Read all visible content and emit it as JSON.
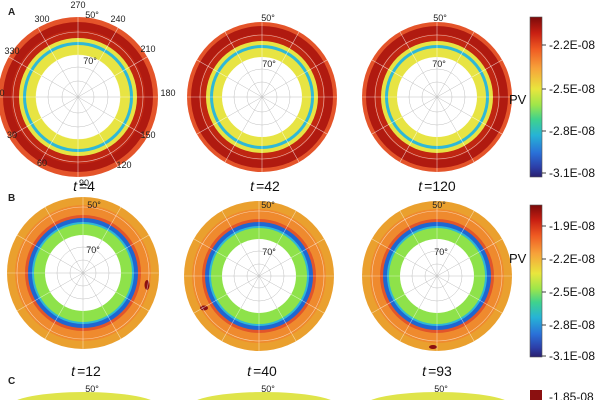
{
  "panels": [
    {
      "label": "A",
      "time_labels": [
        "4",
        "42",
        "120"
      ],
      "longitude_ticks": [
        "270",
        "240",
        "210",
        "180",
        "150",
        "120",
        "90",
        "60",
        "30",
        "0",
        "330",
        "300"
      ],
      "latitude_ticks": [
        "50°",
        "70°"
      ],
      "colorbar": {
        "label": "PV",
        "ticks": [
          "-2.2E-08",
          "-2.5E-08",
          "-2.8E-08",
          "-3.1E-08"
        ],
        "values": [
          -2.2e-08,
          -2.5e-08,
          -2.8e-08,
          -3.1e-08
        ],
        "range": [
          -3.1e-08,
          -2e-08
        ]
      },
      "rings": {
        "outer": "#b01a10",
        "middle": "#e7e443",
        "jet": "#2fb8d6",
        "edge": "#e4542a"
      }
    },
    {
      "label": "B",
      "time_labels": [
        "12",
        "40",
        "93"
      ],
      "latitude_ticks": [
        "50°",
        "70°"
      ],
      "colorbar": {
        "label": "PV",
        "ticks": [
          "-1.9E-08",
          "-2.2E-08",
          "-2.5E-08",
          "-2.8E-08",
          "-3.1E-08"
        ],
        "values": [
          -1.9e-08,
          -2.2e-08,
          -2.5e-08,
          -2.8e-08,
          -3.1e-08
        ],
        "range": [
          -3.1e-08,
          -1.75e-08
        ]
      },
      "rings": {
        "outer": "#eaa02e",
        "middle": "#e2552a",
        "inner": "#8ee24a",
        "jet": "#1f66d1",
        "edge": "#d9e63c"
      }
    },
    {
      "label": "C",
      "latitude_ticks": [
        "50°"
      ],
      "colorbar": {
        "ticks": [
          "-1.85-08"
        ]
      }
    }
  ],
  "time_symbol": "t",
  "equals": "=",
  "colormap": [
    "#7a0a0a",
    "#c81f12",
    "#ef5a22",
    "#f7a23a",
    "#e9e63d",
    "#9ee64a",
    "#3fd28d",
    "#26b3d6",
    "#2a70d8",
    "#2c3ea8",
    "#2a1f6e"
  ]
}
